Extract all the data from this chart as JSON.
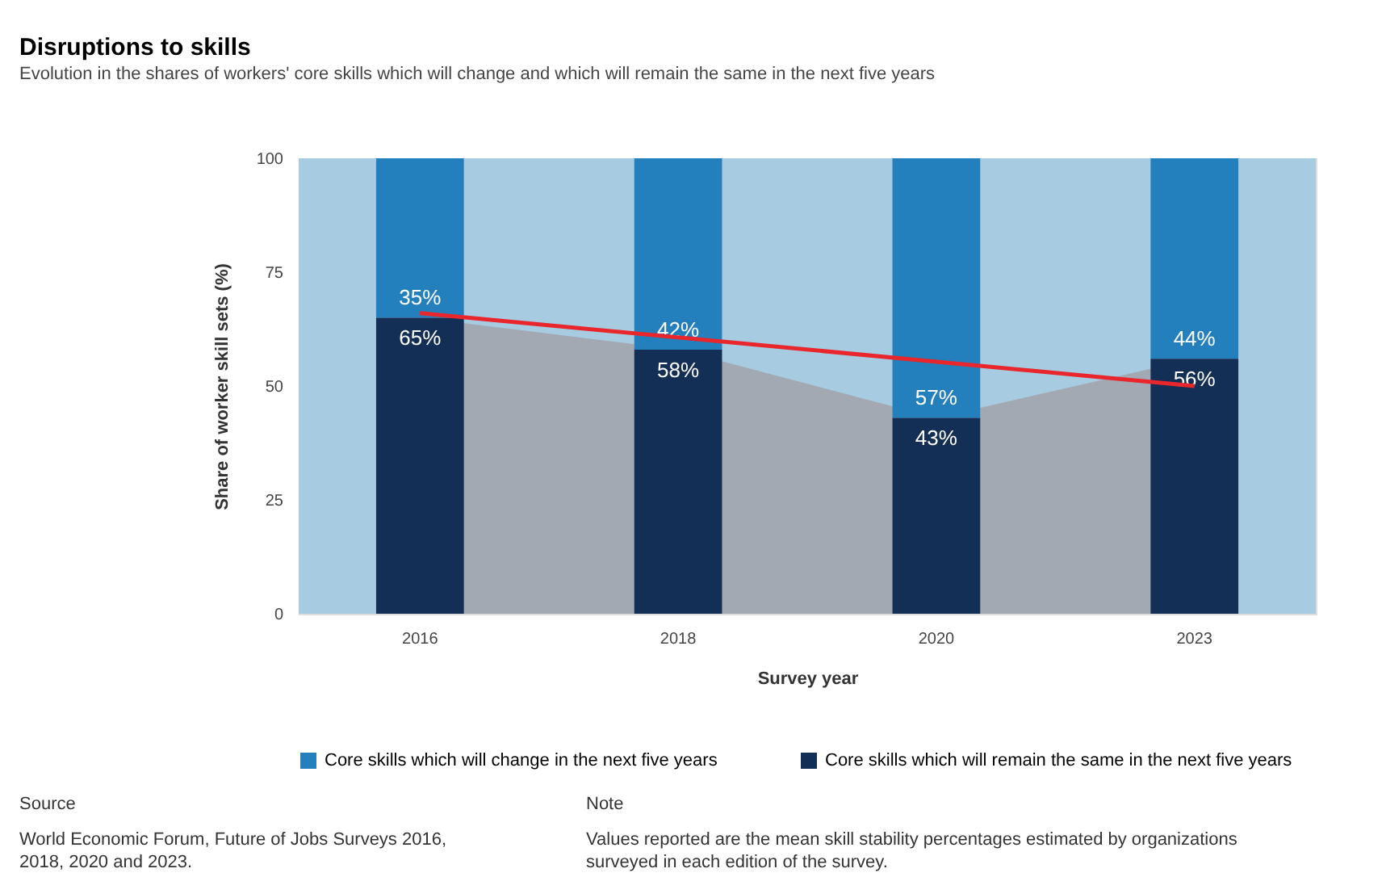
{
  "chart_data": {
    "type": "bar",
    "title": "Disruptions to skills",
    "subtitle": "Evolution in the shares of workers' core skills which will change and which will remain the same in the next five years",
    "xlabel": "Survey year",
    "ylabel": "Share of worker skill sets (%)",
    "categories": [
      "2016",
      "2018",
      "2020",
      "2023"
    ],
    "series": [
      {
        "name": "Core skills which will change in the next five years",
        "color": "#2480bd",
        "values": [
          35,
          42,
          57,
          44
        ],
        "base": [
          65,
          58,
          43,
          56
        ],
        "value_labels": [
          "35%",
          "42%",
          "57%",
          "44%"
        ]
      },
      {
        "name": "Core skills which will remain the same in the next five years",
        "color": "#142f55",
        "values": [
          65,
          58,
          43,
          56
        ],
        "value_labels": [
          "65%",
          "58%",
          "43%",
          "56%"
        ]
      },
      {
        "type": "area",
        "color": "#a3a9b3",
        "values": [
          65,
          58,
          43,
          56
        ]
      },
      {
        "type": "line",
        "color": "#e8262b",
        "values": [
          66,
          null,
          null,
          50
        ]
      }
    ],
    "bands": [
      {
        "axis": "y",
        "from": 0,
        "to": 100,
        "color": "#a7cbe0"
      }
    ],
    "ylim": [
      0,
      100
    ],
    "yticks": [
      0,
      25,
      50,
      75,
      100
    ],
    "legend": "bottom",
    "annotations": [
      "Source",
      "World Economic Forum, Future of Jobs Surveys 2016, 2018, 2020 and 2023.",
      "Note",
      "Values reported are the mean skill stability percentages estimated by organizations surveyed in each edition of the survey."
    ]
  }
}
